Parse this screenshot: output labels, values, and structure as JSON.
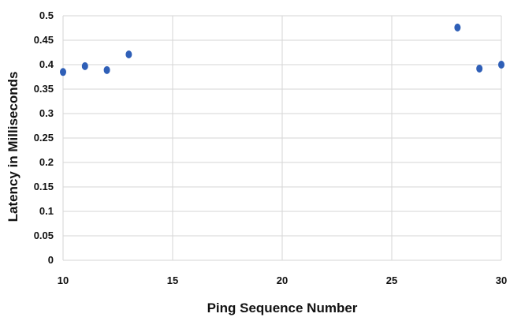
{
  "chart_data": {
    "type": "scatter",
    "title": "",
    "xlabel": "Ping Sequence Number",
    "ylabel": "Latency in Milliseconds",
    "xlim": [
      10,
      30
    ],
    "ylim": [
      0,
      0.5
    ],
    "x_ticks": [
      10,
      15,
      20,
      25,
      30
    ],
    "x_tick_labels": [
      "10",
      "15",
      "20",
      "25",
      "30"
    ],
    "y_ticks": [
      0,
      0.05,
      0.1,
      0.15,
      0.2,
      0.25,
      0.3,
      0.35,
      0.4,
      0.45,
      0.5
    ],
    "y_tick_labels": [
      "0",
      "0.05",
      "0.1",
      "0.15",
      "0.2",
      "0.25",
      "0.3",
      "0.35",
      "0.4",
      "0.45",
      "0.5"
    ],
    "grid": {
      "x": true,
      "y": true
    },
    "legend": "none",
    "marker_color": "#2f5fb7",
    "grid_color": "#d6d6d6",
    "series": [
      {
        "points": [
          {
            "x": 10,
            "y": 0.385
          },
          {
            "x": 11,
            "y": 0.397
          },
          {
            "x": 12,
            "y": 0.389
          },
          {
            "x": 13,
            "y": 0.421
          },
          {
            "x": 28,
            "y": 0.476
          },
          {
            "x": 29,
            "y": 0.392
          },
          {
            "x": 30,
            "y": 0.4
          }
        ]
      }
    ]
  }
}
